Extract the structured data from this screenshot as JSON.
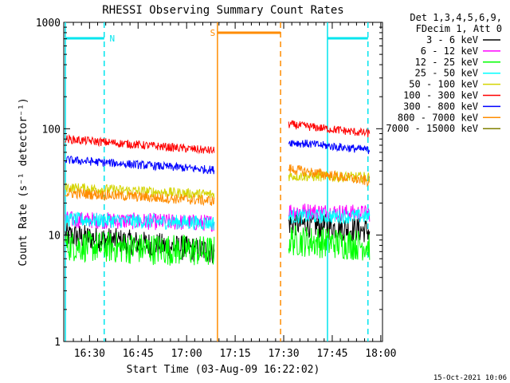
{
  "chart_data": {
    "type": "line",
    "title": "RHESSI Observing Summary Count Rates",
    "xlabel": "Start Time (03-Aug-09 16:22:02)",
    "ylabel": "Count Rate (s⁻¹ detector⁻¹)",
    "y_scale": "log",
    "ylim": [
      1,
      1000
    ],
    "xlim_minutes": [
      0,
      98.5
    ],
    "x_tick_labels": [
      "16:30",
      "16:45",
      "17:00",
      "17:15",
      "17:30",
      "17:45",
      "18:00"
    ],
    "x_tick_minutes": [
      7.97,
      22.97,
      37.97,
      52.97,
      67.97,
      82.97,
      97.97
    ],
    "y_tick_labels": [
      "1",
      "10",
      "100",
      "1000"
    ],
    "y_tick_values": [
      1,
      10,
      100,
      1000
    ],
    "legend_header": [
      "Det 1,3,4,5,6,9,",
      "FDecim 1, Att 0"
    ],
    "legend_placement": "right",
    "footer": "15-Oct-2021 10:06",
    "flags": [
      {
        "label": "N",
        "color": "#00e5ee",
        "bar_start_min": 0.5,
        "bar_end_min": 12.5,
        "lines_solid_min": [
          0.5
        ],
        "lines_dashed_min": [
          12.5
        ]
      },
      {
        "label": "S",
        "color": "#ff8c00",
        "bar_start_min": 47.5,
        "bar_end_min": 67.0,
        "lines_solid_min": [
          47.5
        ],
        "lines_dashed_min": [
          67.0
        ]
      },
      {
        "label": "",
        "color": "#00e5ee",
        "bar_start_min": 81.5,
        "bar_end_min": 94.0,
        "lines_solid_min": [
          81.5
        ],
        "lines_dashed_min": [
          94.0
        ]
      }
    ],
    "series": [
      {
        "name": "3 - 6 keV",
        "color": "#000000",
        "seg1": {
          "x": [
            0.5,
            46.5
          ],
          "y": [
            10,
            7
          ]
        },
        "seg2": {
          "x": [
            69.5,
            94.5
          ],
          "y": [
            13,
            11
          ]
        },
        "noise": 0.12
      },
      {
        "name": "6 - 12 keV",
        "color": "#ff00ff",
        "seg1": {
          "x": [
            0.5,
            46.5
          ],
          "y": [
            14,
            13
          ]
        },
        "seg2": {
          "x": [
            69.5,
            94.5
          ],
          "y": [
            17,
            16
          ]
        },
        "noise": 0.08
      },
      {
        "name": "12 - 25 keV",
        "color": "#00ff00",
        "seg1": {
          "x": [
            0.5,
            46.5
          ],
          "y": [
            8,
            7
          ]
        },
        "seg2": {
          "x": [
            69.5,
            94.5
          ],
          "y": [
            9,
            8
          ]
        },
        "noise": 0.15
      },
      {
        "name": "25 - 50 keV",
        "color": "#00ffff",
        "seg1": {
          "x": [
            0.5,
            46.5
          ],
          "y": [
            14,
            13
          ]
        },
        "seg2": {
          "x": [
            69.5,
            94.5
          ],
          "y": [
            15,
            15
          ]
        },
        "noise": 0.07
      },
      {
        "name": "50 - 100 keV",
        "color": "#d4d400",
        "seg1": {
          "x": [
            0.5,
            46.5
          ],
          "y": [
            28,
            24
          ]
        },
        "seg2": {
          "x": [
            69.5,
            94.5
          ],
          "y": [
            36,
            35
          ]
        },
        "noise": 0.05
      },
      {
        "name": "100 - 300 keV",
        "color": "#ff0000",
        "seg1": {
          "x": [
            0.5,
            46.5
          ],
          "y": [
            80,
            62
          ]
        },
        "seg2": {
          "x": [
            69.5,
            94.5
          ],
          "y": [
            110,
            90
          ]
        },
        "noise": 0.04
      },
      {
        "name": "300 - 800 keV",
        "color": "#0000ff",
        "seg1": {
          "x": [
            0.5,
            46.5
          ],
          "y": [
            51,
            41
          ]
        },
        "seg2": {
          "x": [
            69.5,
            94.5
          ],
          "y": [
            75,
            63
          ]
        },
        "noise": 0.04
      },
      {
        "name": "800 - 7000 keV",
        "color": "#ff8c00",
        "seg1": {
          "x": [
            0.5,
            46.5
          ],
          "y": [
            25,
            21
          ]
        },
        "seg2": {
          "x": [
            69.5,
            94.5
          ],
          "y": [
            42,
            32
          ]
        },
        "noise": 0.05
      },
      {
        "name": "7000 - 15000 keV",
        "color": "#808000",
        "seg1": null,
        "seg2": null,
        "noise": 0
      }
    ]
  }
}
